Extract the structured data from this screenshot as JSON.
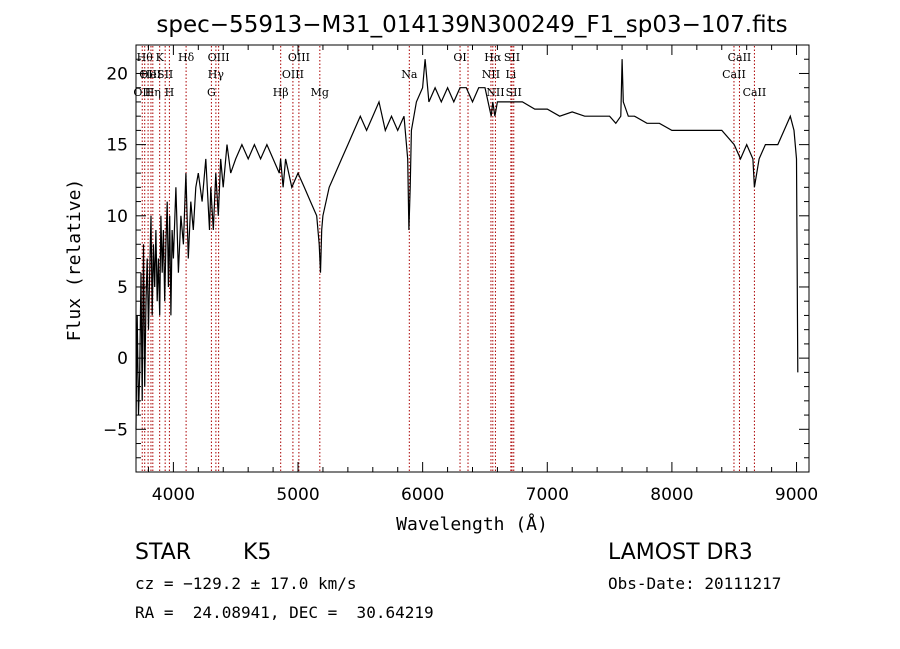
{
  "chart_data": {
    "type": "line",
    "title": "spec−55913−M31_014139N300249_F1_sp03−107.fits",
    "xlabel": "Wavelength (Å)",
    "ylabel": "Flux (relative)",
    "xlim": [
      3700,
      9100
    ],
    "ylim": [
      -8,
      22
    ],
    "xticks": [
      4000,
      5000,
      6000,
      7000,
      8000,
      9000
    ],
    "yticks": [
      -5,
      0,
      5,
      10,
      15,
      20
    ],
    "series": [
      {
        "name": "spectrum",
        "x": [
          3700,
          3710,
          3720,
          3730,
          3740,
          3750,
          3760,
          3770,
          3780,
          3790,
          3800,
          3810,
          3820,
          3830,
          3840,
          3850,
          3860,
          3870,
          3880,
          3890,
          3900,
          3910,
          3920,
          3930,
          3940,
          3950,
          3960,
          3970,
          3980,
          3990,
          4000,
          4020,
          4040,
          4060,
          4080,
          4100,
          4120,
          4140,
          4160,
          4180,
          4200,
          4230,
          4260,
          4290,
          4300,
          4320,
          4340,
          4360,
          4380,
          4400,
          4430,
          4460,
          4500,
          4550,
          4600,
          4650,
          4700,
          4750,
          4800,
          4850,
          4860,
          4880,
          4900,
          4950,
          5000,
          5050,
          5100,
          5150,
          5170,
          5180,
          5190,
          5200,
          5250,
          5300,
          5350,
          5400,
          5450,
          5500,
          5550,
          5600,
          5650,
          5700,
          5750,
          5800,
          5850,
          5880,
          5890,
          5900,
          5910,
          5930,
          5950,
          6000,
          6020,
          6050,
          6100,
          6150,
          6200,
          6250,
          6300,
          6350,
          6400,
          6450,
          6500,
          6550,
          6563,
          6580,
          6600,
          6650,
          6700,
          6750,
          6800,
          6900,
          7000,
          7100,
          7200,
          7300,
          7400,
          7500,
          7550,
          7590,
          7600,
          7610,
          7650,
          7700,
          7800,
          7900,
          8000,
          8100,
          8200,
          8300,
          8400,
          8500,
          8550,
          8600,
          8650,
          8662,
          8700,
          8750,
          8800,
          8850,
          8900,
          8950,
          8980,
          9000,
          9010
        ],
        "y": [
          -5,
          3,
          -4,
          -1,
          6,
          -3,
          8,
          -2,
          4,
          7,
          2,
          6,
          10,
          3,
          8,
          5,
          9,
          4,
          7,
          3,
          10,
          6,
          9,
          4,
          8,
          11,
          5,
          10,
          3,
          9,
          7,
          12,
          6,
          10,
          8,
          13,
          7,
          11,
          9,
          12,
          13,
          11,
          14,
          9,
          12,
          9,
          13,
          10,
          14,
          12,
          15,
          13,
          14,
          15,
          14,
          15,
          14,
          15,
          14,
          13,
          14,
          12,
          14,
          12,
          13,
          12,
          11,
          10,
          8,
          6,
          9,
          10,
          12,
          13,
          14,
          15,
          16,
          17,
          16,
          17,
          18,
          16,
          17,
          16,
          17,
          14,
          9,
          12,
          16,
          17,
          18,
          19,
          21,
          18,
          19,
          18,
          19,
          18,
          19,
          19,
          18,
          19,
          19,
          17,
          18,
          17,
          18,
          18,
          18,
          18,
          18,
          17.5,
          17.5,
          17,
          17.3,
          17,
          17,
          17,
          16.5,
          17,
          21,
          18,
          17,
          17,
          16.5,
          16.5,
          16,
          16,
          16,
          16,
          16,
          15,
          14,
          15,
          14,
          12,
          14,
          15,
          15,
          15,
          16,
          17,
          16,
          14,
          -1
        ]
      }
    ],
    "lines": [
      {
        "w": 3750,
        "label": "OII",
        "tier": 3
      },
      {
        "w": 3770,
        "label": "Hθ",
        "tier": 1
      },
      {
        "w": 3797,
        "label": "OII",
        "tier": 2
      },
      {
        "w": 3820,
        "label": "HeI",
        "tier": 2
      },
      {
        "w": 3835,
        "label": "Hη",
        "tier": 3
      },
      {
        "w": 3890,
        "label": "K",
        "tier": 1
      },
      {
        "w": 3934,
        "label": "SII",
        "tier": 2
      },
      {
        "w": 3968,
        "label": "H",
        "tier": 3
      },
      {
        "w": 4102,
        "label": "Hδ",
        "tier": 1
      },
      {
        "w": 4305,
        "label": "G",
        "tier": 3
      },
      {
        "w": 4341,
        "label": "Hγ",
        "tier": 2
      },
      {
        "w": 4363,
        "label": "OIII",
        "tier": 1
      },
      {
        "w": 4861,
        "label": "Hβ",
        "tier": 3
      },
      {
        "w": 4959,
        "label": "OIII",
        "tier": 2
      },
      {
        "w": 5007,
        "label": "OIII",
        "tier": 1
      },
      {
        "w": 5175,
        "label": "Mg",
        "tier": 3
      },
      {
        "w": 5893,
        "label": "Na",
        "tier": 2
      },
      {
        "w": 6300,
        "label": "OI",
        "tier": 1
      },
      {
        "w": 6364,
        "label": "",
        "tier": 0
      },
      {
        "w": 6548,
        "label": "NII",
        "tier": 2
      },
      {
        "w": 6563,
        "label": "Hα",
        "tier": 1
      },
      {
        "w": 6584,
        "label": "NII",
        "tier": 3
      },
      {
        "w": 6708,
        "label": "Li",
        "tier": 2
      },
      {
        "w": 6717,
        "label": "SII",
        "tier": 1
      },
      {
        "w": 6731,
        "label": "SII",
        "tier": 3
      },
      {
        "w": 8498,
        "label": "CaII",
        "tier": 2
      },
      {
        "w": 8542,
        "label": "CaII",
        "tier": 1
      },
      {
        "w": 8662,
        "label": "CaII",
        "tier": 3
      }
    ]
  },
  "info": {
    "object_type": "STAR",
    "subclass": "K5",
    "survey": "LAMOST DR3",
    "cz": "cz = −129.2 ± 17.0 km/s",
    "obs_date": "Obs-Date: 20111217",
    "radec": "RA =  24.08941, DEC =  30.64219"
  },
  "colors": {
    "axis": "#000000",
    "spectrum": "#000000",
    "lines": "#aa0000"
  }
}
